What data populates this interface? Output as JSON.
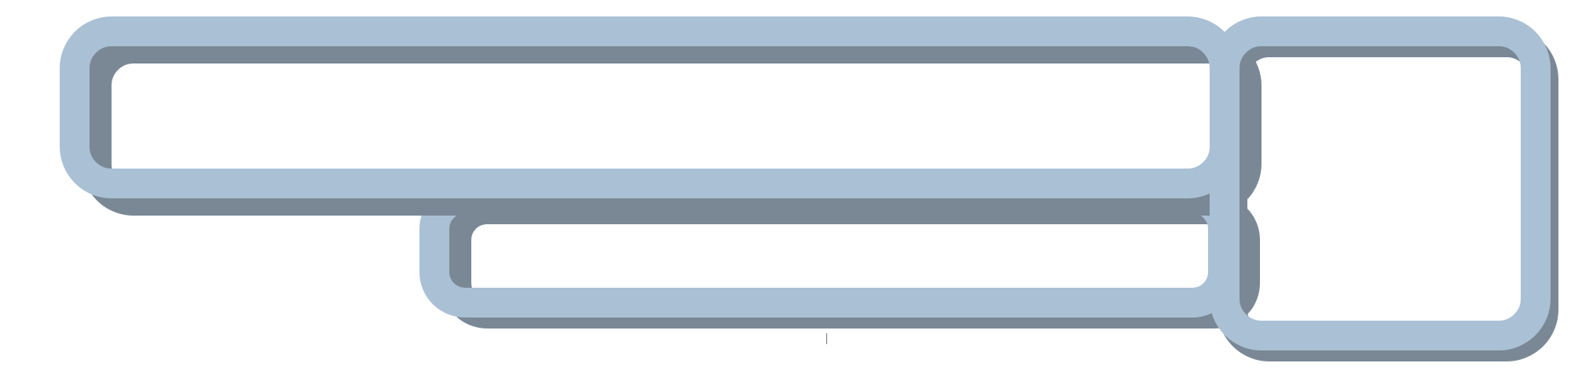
{
  "colors": {
    "frame_ring": "#aac0d4",
    "frame_shadow": "#7a8896",
    "background": "#ffffff",
    "text_cursor": "#777777"
  },
  "frames": [
    {
      "id": "top",
      "shape": "wide rounded rectangle outline"
    },
    {
      "id": "middle",
      "shape": "rounded rectangle outline"
    },
    {
      "id": "right",
      "shape": "rounded square outline"
    }
  ],
  "cursor": {
    "type": "text-caret"
  }
}
